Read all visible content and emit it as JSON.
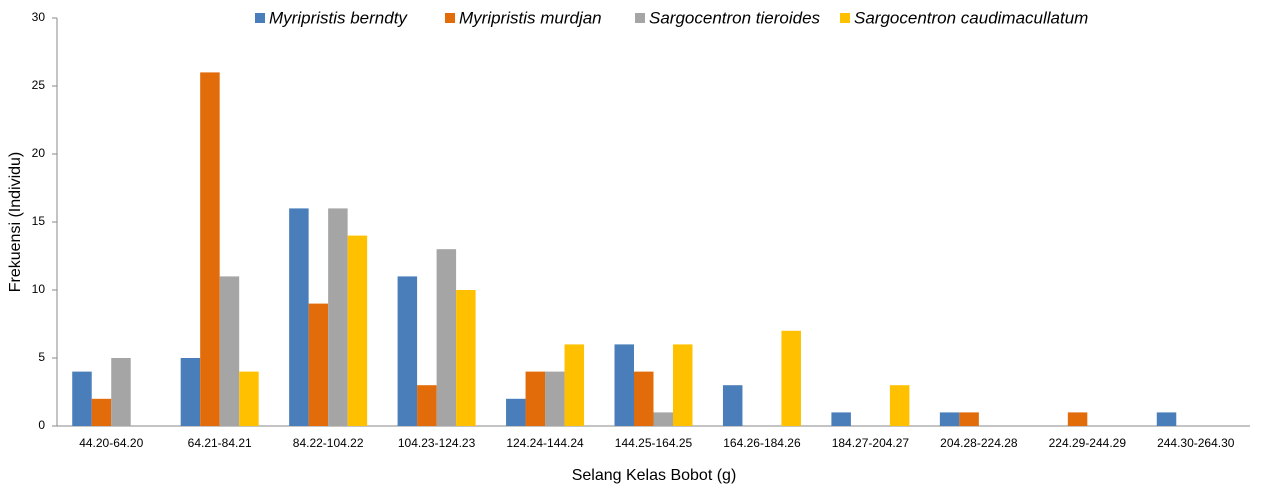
{
  "chart_data": {
    "type": "bar",
    "categories": [
      "44.20-64.20",
      "64.21-84.21",
      "84.22-104.22",
      "104.23-124.23",
      "124.24-144.24",
      "144.25-164.25",
      "164.26-184.26",
      "184.27-204.27",
      "204.28-224.28",
      "224.29-244.29",
      "244.30-264.30"
    ],
    "series": [
      {
        "name": "Myripristis berndty",
        "color": "#4a7ebb",
        "values": [
          4,
          5,
          16,
          11,
          2,
          6,
          3,
          1,
          1,
          0,
          1
        ]
      },
      {
        "name": "Myripristis murdjan",
        "color": "#e36c0a",
        "values": [
          2,
          26,
          9,
          3,
          4,
          4,
          0,
          0,
          1,
          1,
          0
        ]
      },
      {
        "name": "Sargocentron tieroides",
        "color": "#a5a5a5",
        "values": [
          5,
          11,
          16,
          13,
          4,
          1,
          0,
          0,
          0,
          0,
          0
        ]
      },
      {
        "name": "Sargocentron caudimacullatum",
        "color": "#ffc000",
        "values": [
          0,
          4,
          14,
          10,
          6,
          6,
          7,
          3,
          0,
          0,
          0
        ]
      }
    ],
    "ylim": [
      0,
      30
    ],
    "yticks": [
      0,
      5,
      10,
      15,
      20,
      25,
      30
    ],
    "xlabel": "Selang Kelas Bobot (g)",
    "ylabel": "Frekuensi (Individu)",
    "legend": "top",
    "grid": false
  }
}
